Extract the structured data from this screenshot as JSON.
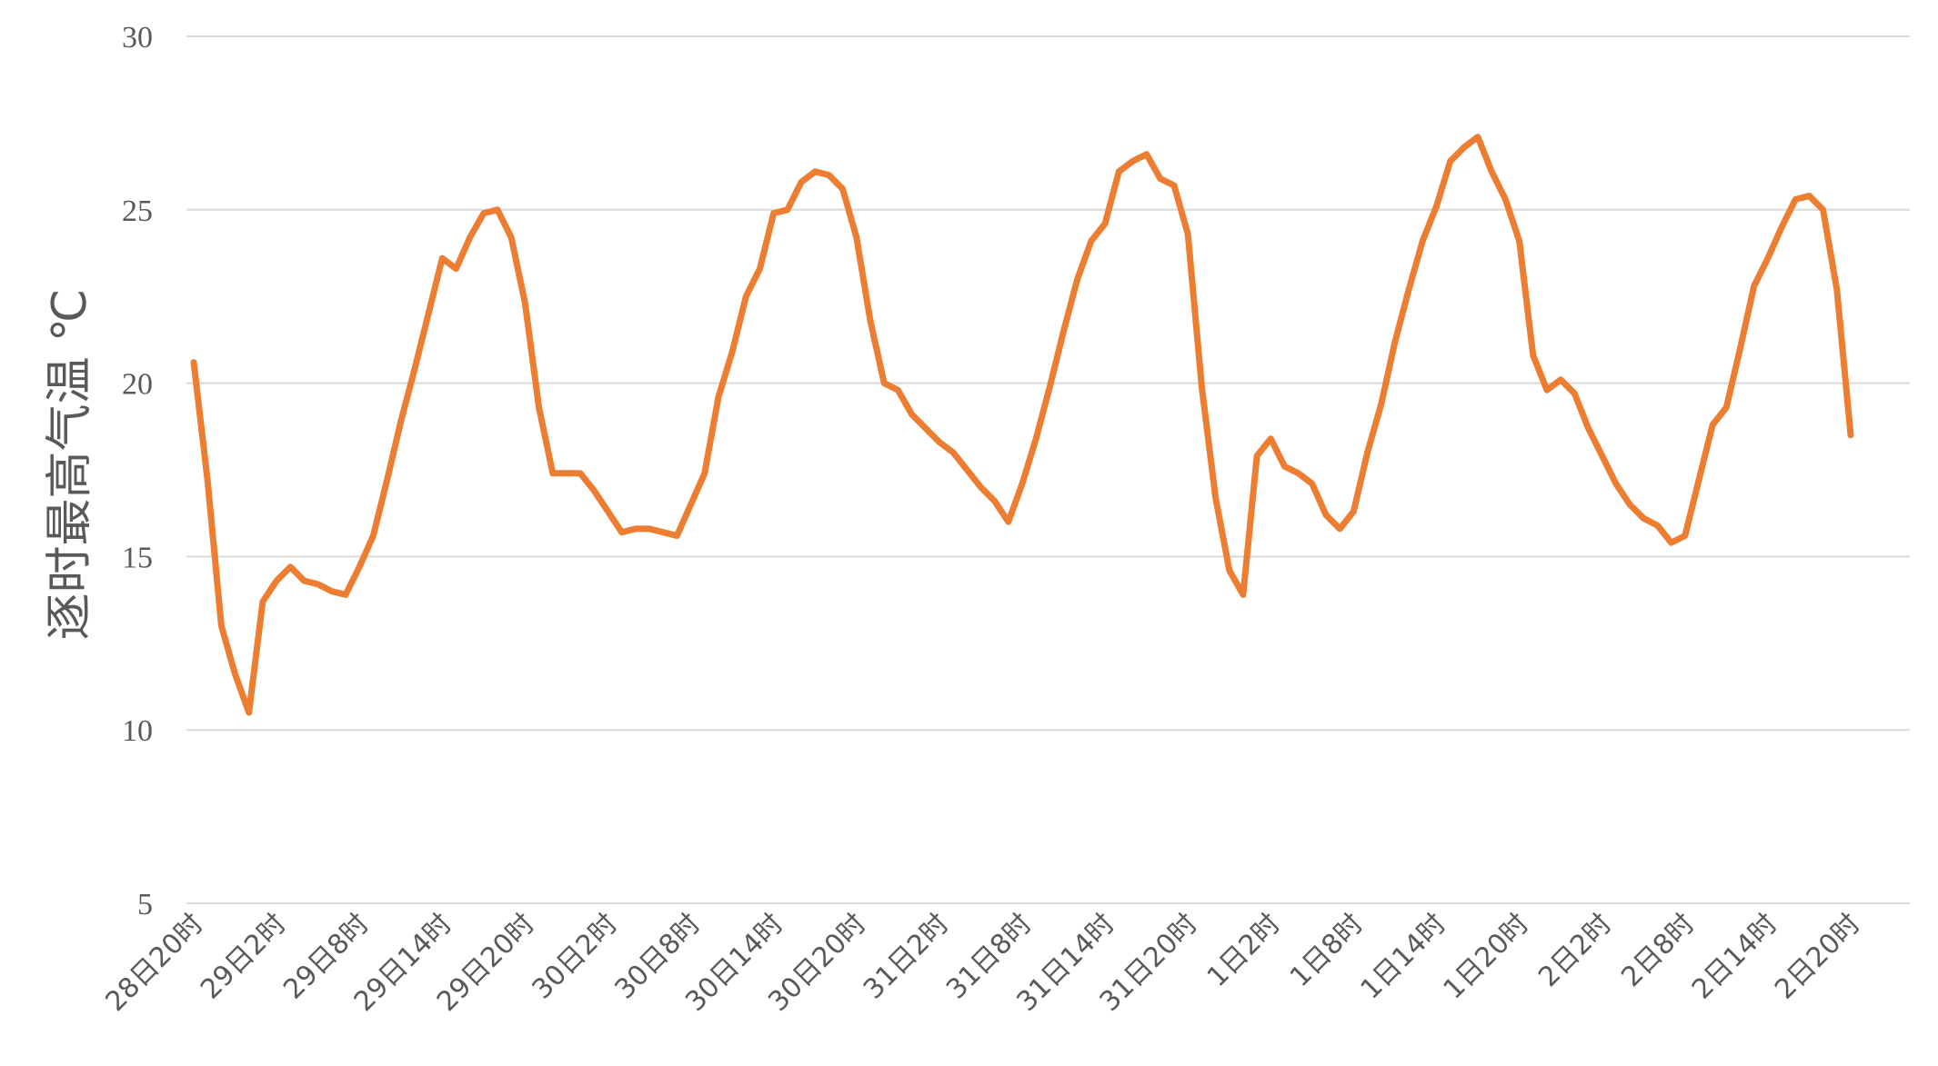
{
  "chart_data": {
    "type": "line",
    "title": "",
    "xlabel": "",
    "ylabel": "逐时最高气温 ℃",
    "ylim": [
      5,
      30
    ],
    "yticks": [
      5,
      10,
      15,
      20,
      25,
      30
    ],
    "grid": true,
    "colors": {
      "line": "#ED7D31",
      "grid": "#D9D9D9",
      "text": "#595959"
    },
    "x_tick_labels": [
      "28日20时",
      "29日2时",
      "29日8时",
      "29日14时",
      "29日20时",
      "30日2时",
      "30日8时",
      "30日14时",
      "30日20时",
      "31日2时",
      "31日8时",
      "31日14时",
      "31日20时",
      "1日2时",
      "1日8时",
      "1日14时",
      "1日20时",
      "2日2时",
      "2日8时",
      "2日14时",
      "2日20时"
    ],
    "series": [
      {
        "values": [
          20.6,
          17.2,
          13,
          11.6,
          10.5,
          13.7,
          14.3,
          14.7,
          14.3,
          14.2,
          14,
          13.9,
          14.7,
          15.6,
          17.2,
          18.9,
          20.4,
          22,
          23.6,
          23.3,
          24.2,
          24.9,
          25,
          24.2,
          22.3,
          19.3,
          17.4,
          17.4,
          17.4,
          16.9,
          16.3,
          15.7,
          15.8,
          15.8,
          15.7,
          15.6,
          16.5,
          17.4,
          19.6,
          20.9,
          22.5,
          23.3,
          24.9,
          25,
          25.8,
          26.1,
          26,
          25.6,
          24.2,
          21.8,
          20,
          19.8,
          19.1,
          18.7,
          18.3,
          18,
          17.5,
          17,
          16.6,
          16,
          17.1,
          18.4,
          19.9,
          21.5,
          23,
          24.1,
          24.6,
          26.1,
          26.4,
          26.6,
          25.9,
          25.7,
          24.3,
          19.9,
          16.7,
          14.6,
          13.9,
          17.9,
          18.4,
          17.6,
          17.4,
          17.1,
          16.2,
          15.8,
          16.3,
          18,
          19.4,
          21.2,
          22.7,
          24.1,
          25.1,
          26.4,
          26.8,
          27.1,
          26.1,
          25.3,
          24.1,
          20.8,
          19.8,
          20.1,
          19.7,
          18.7,
          17.9,
          17.1,
          16.5,
          16.1,
          15.9,
          15.4,
          15.6,
          17.2,
          18.8,
          19.3,
          21,
          22.8,
          23.6,
          24.5,
          25.3,
          25.4,
          25,
          22.7,
          18.5
        ]
      }
    ]
  }
}
